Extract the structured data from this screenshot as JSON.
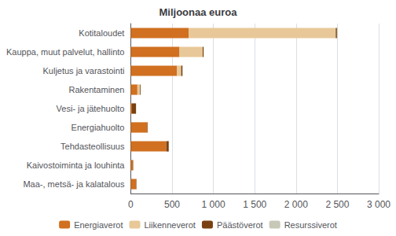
{
  "chart_data": {
    "type": "bar",
    "orientation": "horizontal",
    "stacked": true,
    "title": "Miljoonaa euroa",
    "categories": [
      "Kotitaloudet",
      "Kauppa, muut palvelut, hallinto",
      "Kuljetus ja varastointi",
      "Rakentaminen",
      "Vesi- ja jätehuolto",
      "Energiahuolto",
      "Tehdasteollisuus",
      "Kaivostoiminta ja louhinta",
      "Maa-, metsä- ja kalatalous"
    ],
    "series": [
      {
        "name": "Energiaverot",
        "color": "#d07020",
        "values": [
          700,
          590,
          560,
          80,
          15,
          200,
          430,
          25,
          65
        ]
      },
      {
        "name": "Liikenneverot",
        "color": "#e8c898",
        "values": [
          1780,
          280,
          50,
          30,
          0,
          0,
          0,
          0,
          0
        ]
      },
      {
        "name": "Päästöverot",
        "color": "#7a4010",
        "values": [
          15,
          10,
          15,
          8,
          48,
          5,
          30,
          5,
          5
        ]
      },
      {
        "name": "Resurssiverot",
        "color": "#c8c8b8",
        "values": [
          8,
          5,
          5,
          5,
          3,
          3,
          3,
          3,
          3
        ]
      }
    ],
    "xlim": [
      0,
      3000
    ],
    "xticks": [
      0,
      500,
      {
        "value": 1000,
        "label": "1 000"
      },
      {
        "value": 1500,
        "label": "1 500"
      },
      {
        "value": 2000,
        "label": "2 000"
      },
      {
        "value": 2500,
        "label": "2 500"
      },
      {
        "value": 3000,
        "label": "3 000"
      }
    ],
    "grid": true,
    "legend": "bottom"
  }
}
